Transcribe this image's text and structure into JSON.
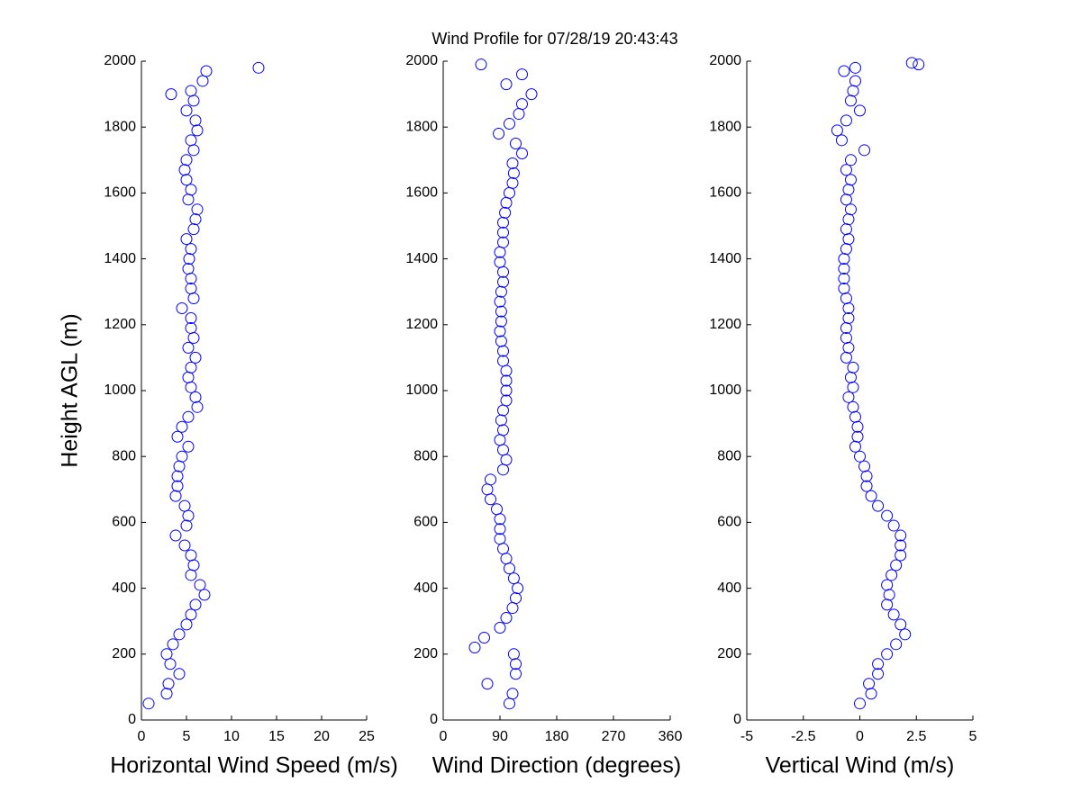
{
  "title": "Wind Profile for  07/28/19 20:43:43",
  "chart_data": [
    {
      "type": "scatter",
      "xlabel": "Horizontal Wind Speed (m/s)",
      "ylabel": "Height AGL (m)",
      "color": "#0000ff",
      "xlim": [
        0,
        25
      ],
      "xticks": [
        0,
        5,
        10,
        15,
        20,
        25
      ],
      "ylim": [
        0,
        2000
      ],
      "yticks": [
        0,
        200,
        400,
        600,
        800,
        1000,
        1200,
        1400,
        1600,
        1800,
        2000
      ],
      "x": [
        0.8,
        2.8,
        3,
        4.2,
        3.2,
        2.8,
        3.5,
        4.2,
        5,
        5.5,
        6,
        7,
        6.5,
        5.5,
        5.8,
        5.5,
        4.8,
        3.8,
        5,
        5.2,
        4.8,
        3.8,
        4,
        4,
        4.2,
        4.5,
        5.2,
        4,
        4.5,
        5.2,
        6.2,
        6,
        5.5,
        5.2,
        5.5,
        6,
        5.2,
        5.8,
        5.5,
        5.5,
        4.5,
        5.8,
        5.5,
        5.5,
        5.2,
        5.3,
        5.5,
        5,
        5.8,
        6,
        6.2,
        5.2,
        5.5,
        5,
        4.8,
        5,
        5.8,
        5.5,
        6.2,
        6,
        5,
        5.8,
        5.5,
        6.8,
        7.2,
        13,
        3.3
      ],
      "y": [
        50,
        80,
        110,
        140,
        170,
        200,
        230,
        260,
        290,
        320,
        350,
        380,
        410,
        440,
        470,
        500,
        530,
        560,
        590,
        620,
        650,
        680,
        710,
        740,
        770,
        800,
        830,
        860,
        890,
        920,
        950,
        980,
        1010,
        1040,
        1070,
        1100,
        1130,
        1160,
        1190,
        1220,
        1250,
        1280,
        1310,
        1340,
        1370,
        1400,
        1430,
        1460,
        1490,
        1520,
        1550,
        1580,
        1610,
        1640,
        1670,
        1700,
        1730,
        1760,
        1790,
        1820,
        1850,
        1880,
        1910,
        1940,
        1970,
        1980,
        1900
      ]
    },
    {
      "type": "scatter",
      "xlabel": "Wind Direction (degrees)",
      "color": "#0000ff",
      "xlim": [
        0,
        360
      ],
      "xticks": [
        0,
        90,
        180,
        270,
        360
      ],
      "ylim": [
        0,
        2000
      ],
      "yticks": [
        0,
        200,
        400,
        600,
        800,
        1000,
        1200,
        1400,
        1600,
        1800,
        2000
      ],
      "x": [
        105,
        110,
        70,
        115,
        115,
        112,
        50,
        65,
        90,
        100,
        110,
        115,
        118,
        112,
        105,
        100,
        95,
        90,
        90,
        90,
        85,
        75,
        70,
        75,
        95,
        100,
        95,
        90,
        95,
        92,
        95,
        100,
        100,
        100,
        100,
        95,
        95,
        92,
        90,
        92,
        92,
        90,
        92,
        95,
        95,
        90,
        90,
        95,
        95,
        95,
        98,
        100,
        105,
        110,
        112,
        110,
        125,
        115,
        88,
        105,
        120,
        125,
        140,
        100,
        125,
        60
      ],
      "y": [
        50,
        80,
        110,
        140,
        170,
        200,
        220,
        250,
        280,
        310,
        340,
        370,
        400,
        430,
        460,
        490,
        520,
        550,
        580,
        610,
        640,
        670,
        700,
        730,
        760,
        790,
        820,
        850,
        880,
        910,
        940,
        970,
        1000,
        1030,
        1060,
        1090,
        1120,
        1150,
        1180,
        1210,
        1240,
        1270,
        1300,
        1330,
        1360,
        1390,
        1420,
        1450,
        1480,
        1510,
        1540,
        1570,
        1600,
        1630,
        1660,
        1690,
        1720,
        1750,
        1780,
        1810,
        1840,
        1870,
        1900,
        1930,
        1960,
        1990
      ]
    },
    {
      "type": "scatter",
      "xlabel": "Vertical Wind (m/s)",
      "color": "#0000ff",
      "xlim": [
        -5,
        5
      ],
      "xticks": [
        -5,
        -2.5,
        0,
        2.5,
        5
      ],
      "ylim": [
        0,
        2000
      ],
      "yticks": [
        0,
        200,
        400,
        600,
        800,
        1000,
        1200,
        1400,
        1600,
        1800,
        2000
      ],
      "x": [
        0,
        0.5,
        0.4,
        0.8,
        0.8,
        1.2,
        1.6,
        2,
        1.8,
        1.5,
        1.2,
        1.3,
        1.2,
        1.4,
        1.6,
        1.8,
        1.8,
        1.8,
        1.5,
        1.2,
        0.8,
        0.5,
        0.3,
        0.3,
        0.2,
        0,
        -0.2,
        -0.1,
        -0.1,
        -0.2,
        -0.3,
        -0.5,
        -0.3,
        -0.4,
        -0.3,
        -0.6,
        -0.5,
        -0.6,
        -0.6,
        -0.5,
        -0.5,
        -0.6,
        -0.7,
        -0.7,
        -0.7,
        -0.7,
        -0.6,
        -0.5,
        -0.6,
        -0.5,
        -0.4,
        -0.6,
        -0.5,
        -0.4,
        -0.6,
        -0.4,
        0.2,
        -0.8,
        -1,
        -0.6,
        0,
        -0.4,
        -0.3,
        -0.2,
        -0.7,
        -0.2,
        2.3,
        2.6
      ],
      "y": [
        50,
        80,
        110,
        140,
        170,
        200,
        230,
        260,
        290,
        320,
        350,
        380,
        410,
        440,
        470,
        500,
        530,
        560,
        590,
        620,
        650,
        680,
        710,
        740,
        770,
        800,
        830,
        860,
        890,
        920,
        950,
        980,
        1010,
        1040,
        1070,
        1100,
        1130,
        1160,
        1190,
        1220,
        1250,
        1280,
        1310,
        1340,
        1370,
        1400,
        1430,
        1460,
        1490,
        1520,
        1550,
        1580,
        1610,
        1640,
        1670,
        1700,
        1730,
        1760,
        1790,
        1820,
        1850,
        1880,
        1910,
        1940,
        1970,
        1980,
        1995,
        1990
      ]
    }
  ]
}
